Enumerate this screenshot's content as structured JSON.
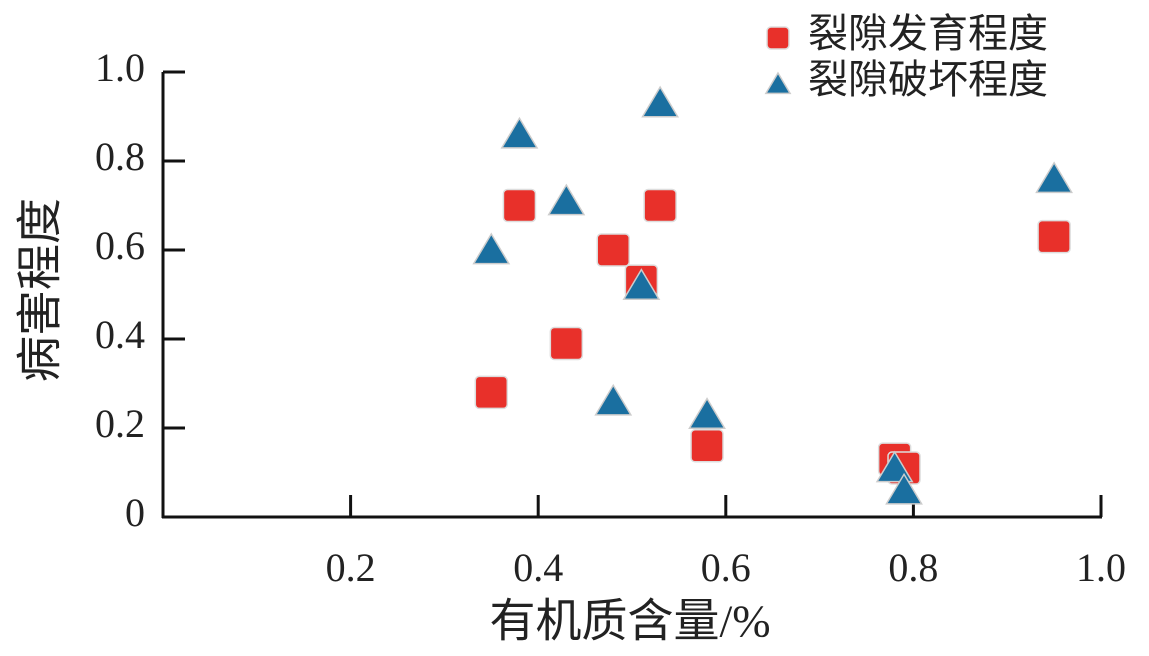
{
  "chart_data": {
    "type": "scatter",
    "x_label": "有机质含量/%",
    "y_label": "病害程度",
    "xlim": [
      0,
      1
    ],
    "ylim": [
      0,
      1
    ],
    "xticks": [
      0.2,
      0.4,
      0.6,
      0.8,
      {
        "value": 1,
        "label": "1.0"
      }
    ],
    "yticks": [
      0,
      0.2,
      0.4,
      0.6,
      0.8,
      {
        "value": 1,
        "label": "1.0"
      }
    ],
    "legend": "top-right",
    "series": [
      {
        "name": "裂隙发育程度",
        "color": "#e8302a",
        "marker": "square",
        "x": [
          0.35,
          0.38,
          0.43,
          0.48,
          0.51,
          0.53,
          0.58,
          0.78,
          0.79,
          0.95
        ],
        "values": [
          0.28,
          0.7,
          0.39,
          0.6,
          0.53,
          0.7,
          0.16,
          0.13,
          0.11,
          0.63
        ]
      },
      {
        "name": "裂隙破坏程度",
        "color": "#1a6fa0",
        "marker": "triangle",
        "x": [
          0.35,
          0.38,
          0.43,
          0.48,
          0.51,
          0.53,
          0.58,
          0.78,
          0.79,
          0.95
        ],
        "values": [
          0.6,
          0.86,
          0.71,
          0.26,
          0.52,
          0.93,
          0.23,
          0.11,
          0.06,
          0.76
        ]
      }
    ]
  }
}
